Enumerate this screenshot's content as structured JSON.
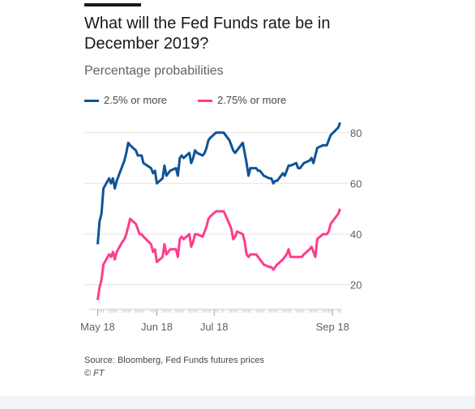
{
  "header": {
    "title": "What will the Fed Funds rate be in December 2019?",
    "subtitle": "Percentage probabilities"
  },
  "legend": [
    {
      "label": "2.5% or more",
      "color": "#0f5499"
    },
    {
      "label": "2.75% or more",
      "color": "#ff3c8e"
    }
  ],
  "footer": {
    "source": "Source: Bloomberg, Fed Funds futures prices",
    "copyright": "© FT"
  },
  "chart_data": {
    "type": "line",
    "title": "What will the Fed Funds rate be in December 2019?",
    "subtitle": "Percentage probabilities",
    "xlabel": "",
    "ylabel": "",
    "x_tick_labels": [
      "May 18",
      "Jun 18",
      "Jul 18",
      "Sep 18"
    ],
    "y_ticks": [
      20,
      40,
      60,
      80
    ],
    "ylim": [
      10,
      86
    ],
    "grid": true,
    "legend_position": "top-left",
    "x": [
      "2018-05-01",
      "2018-05-02",
      "2018-05-03",
      "2018-05-04",
      "2018-05-07",
      "2018-05-08",
      "2018-05-09",
      "2018-05-10",
      "2018-05-11",
      "2018-05-14",
      "2018-05-15",
      "2018-05-16",
      "2018-05-17",
      "2018-05-18",
      "2018-05-21",
      "2018-05-22",
      "2018-05-23",
      "2018-05-24",
      "2018-05-25",
      "2018-05-29",
      "2018-05-30",
      "2018-05-31",
      "2018-06-01",
      "2018-06-04",
      "2018-06-05",
      "2018-06-06",
      "2018-06-07",
      "2018-06-08",
      "2018-06-11",
      "2018-06-12",
      "2018-06-13",
      "2018-06-14",
      "2018-06-15",
      "2018-06-18",
      "2018-06-19",
      "2018-06-20",
      "2018-06-21",
      "2018-06-22",
      "2018-06-25",
      "2018-06-26",
      "2018-06-27",
      "2018-06-28",
      "2018-06-29",
      "2018-07-02",
      "2018-07-03",
      "2018-07-05",
      "2018-07-06",
      "2018-07-09",
      "2018-07-10",
      "2018-07-11",
      "2018-07-12",
      "2018-07-13",
      "2018-07-16",
      "2018-07-17",
      "2018-07-18",
      "2018-07-19",
      "2018-07-20",
      "2018-07-23",
      "2018-07-24",
      "2018-07-25",
      "2018-07-26",
      "2018-07-27",
      "2018-07-30",
      "2018-07-31",
      "2018-08-01",
      "2018-08-02",
      "2018-08-03",
      "2018-08-06",
      "2018-08-07",
      "2018-08-08",
      "2018-08-09",
      "2018-08-10",
      "2018-08-13",
      "2018-08-14",
      "2018-08-15",
      "2018-08-16",
      "2018-08-17",
      "2018-08-20",
      "2018-08-21",
      "2018-08-22",
      "2018-08-23",
      "2018-08-24",
      "2018-08-27",
      "2018-08-28",
      "2018-08-29",
      "2018-08-30",
      "2018-08-31",
      "2018-09-04",
      "2018-09-05"
    ],
    "series": [
      {
        "name": "2.5% or more",
        "color": "#0f5499",
        "values": [
          36,
          45,
          48,
          58,
          62,
          60,
          62,
          58,
          61,
          67,
          69,
          72,
          76,
          75,
          73,
          71,
          71,
          71,
          68,
          66,
          64,
          65,
          60,
          62,
          67,
          63,
          64,
          65,
          66,
          63,
          70,
          71,
          70,
          72,
          68,
          70,
          73,
          72,
          71,
          72,
          74,
          77,
          78,
          80,
          80,
          80,
          80,
          77,
          75,
          73,
          72,
          73,
          76,
          72,
          68,
          63,
          66,
          66,
          65,
          65,
          64,
          63,
          62,
          62,
          60,
          61,
          61,
          64,
          63,
          65,
          67,
          67,
          68,
          66,
          66,
          67,
          68,
          69,
          70,
          68,
          71,
          74,
          75,
          75,
          75,
          77,
          79,
          82,
          84
        ]
      },
      {
        "name": "2.75% or more",
        "color": "#ff3c8e",
        "values": [
          14,
          19,
          22,
          28,
          32,
          31,
          33,
          30,
          33,
          37,
          38,
          40,
          43,
          46,
          44,
          42,
          40,
          40,
          39,
          36,
          33,
          34,
          29,
          31,
          36,
          32,
          33,
          34,
          34,
          31,
          38,
          39,
          38,
          40,
          35,
          37,
          40,
          40,
          39,
          41,
          43,
          46,
          47,
          49,
          49,
          49,
          49,
          44,
          42,
          38,
          39,
          41,
          40,
          37,
          32,
          31,
          32,
          32,
          31,
          30,
          29,
          28,
          27,
          27,
          26,
          27,
          28,
          30,
          31,
          32,
          34,
          31,
          31,
          31,
          31,
          31,
          32,
          34,
          35,
          33,
          31,
          38,
          40,
          40,
          40,
          41,
          44,
          48,
          50
        ]
      }
    ]
  }
}
